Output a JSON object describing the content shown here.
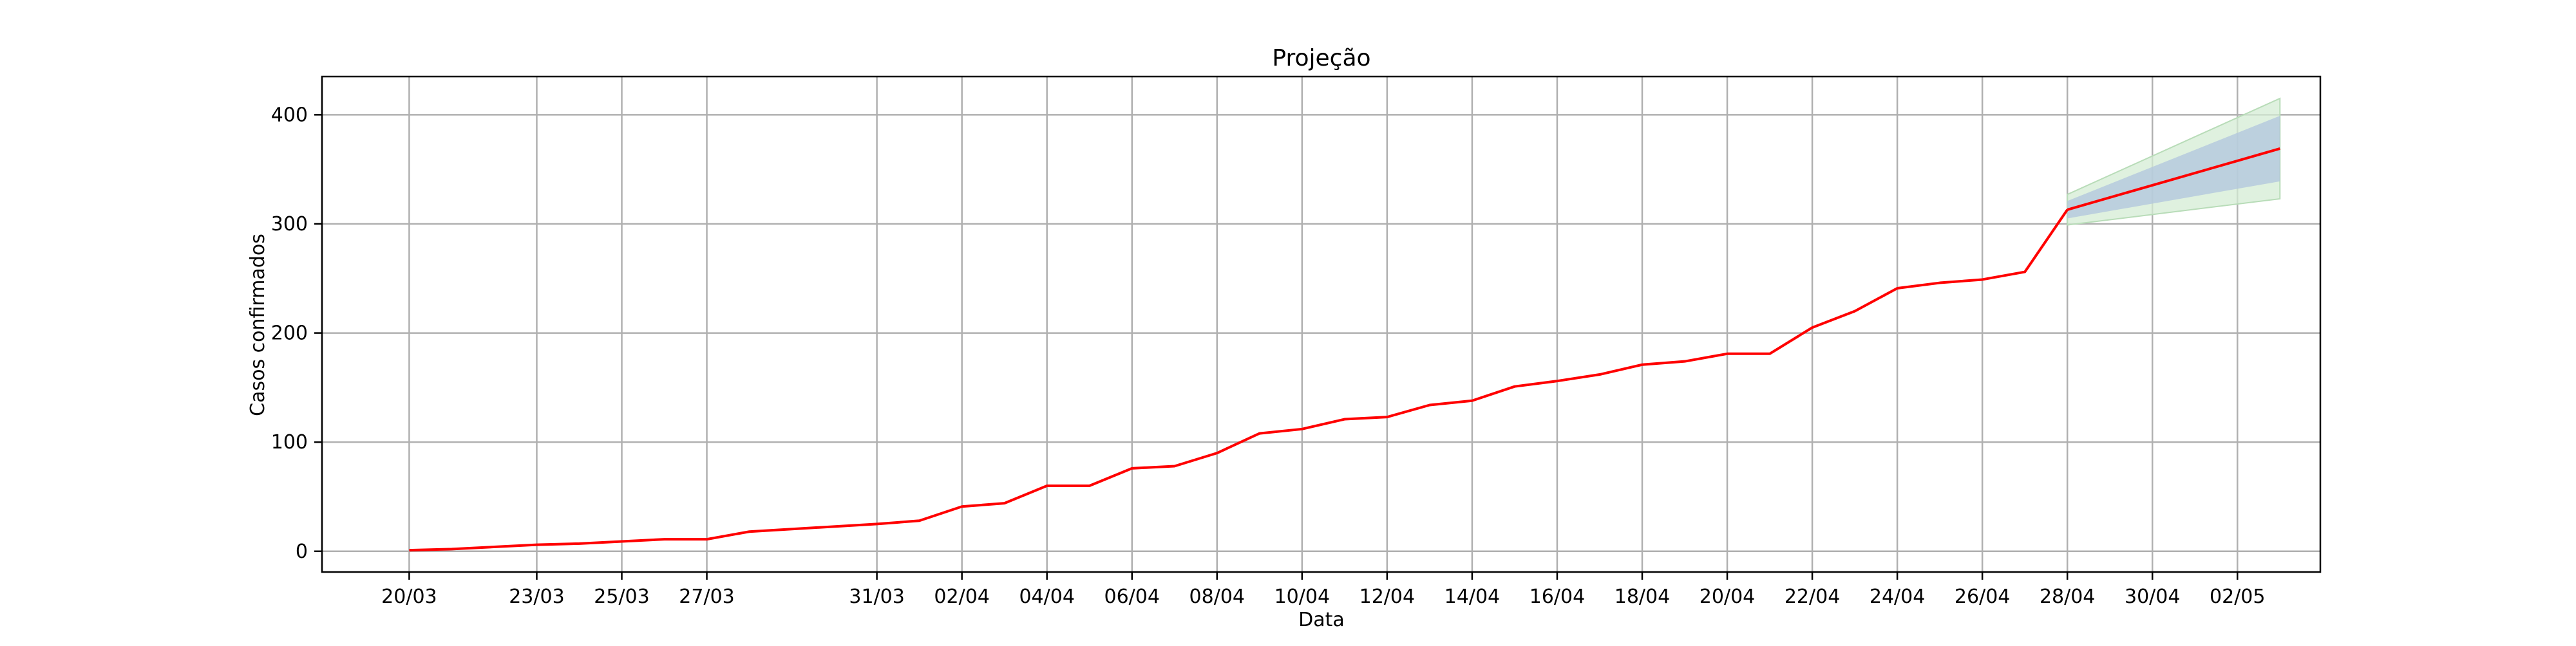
{
  "chart_data": {
    "type": "line",
    "title": "Projeção",
    "xlabel": "Data",
    "ylabel": "Casos confirmados",
    "ylim": [
      -19,
      435
    ],
    "yticks": [
      0,
      100,
      200,
      300,
      400
    ],
    "grid": true,
    "x_tick_labels": [
      "20/03",
      "23/03",
      "25/03",
      "27/03",
      "31/03",
      "02/04",
      "04/04",
      "06/04",
      "08/04",
      "10/04",
      "12/04",
      "14/04",
      "16/04",
      "18/04",
      "20/04",
      "22/04",
      "24/04",
      "26/04",
      "28/04",
      "30/04",
      "02/05"
    ],
    "colors": {
      "observed_line": "#ff0000",
      "inner_band": "#b0c4de",
      "outer_band": "#d4ecd4",
      "outer_band_edge": "#b8dcb8"
    },
    "observed": {
      "x": [
        "20/03",
        "21/03",
        "23/03",
        "24/03",
        "25/03",
        "26/03",
        "27/03",
        "28/03",
        "31/03",
        "01/04",
        "02/04",
        "03/04",
        "04/04",
        "05/04",
        "06/04",
        "07/04",
        "08/04",
        "09/04",
        "10/04",
        "11/04",
        "12/04",
        "13/04",
        "14/04",
        "15/04",
        "16/04",
        "17/04",
        "18/04",
        "19/04",
        "20/04",
        "21/04",
        "22/04",
        "23/04",
        "24/04",
        "25/04",
        "26/04",
        "27/04",
        "28/04"
      ],
      "y": [
        1,
        2,
        6,
        7,
        9,
        11,
        11,
        18,
        25,
        28,
        41,
        44,
        60,
        60,
        76,
        78,
        90,
        108,
        112,
        121,
        123,
        134,
        138,
        151,
        156,
        162,
        171,
        174,
        181,
        181,
        205,
        220,
        241,
        246,
        249,
        256,
        313
      ]
    },
    "projection": {
      "x": [
        "28/04",
        "03/05"
      ],
      "center": [
        313,
        369
      ],
      "inner_lower": [
        305,
        339
      ],
      "inner_upper": [
        321,
        399
      ],
      "outer_lower": [
        299,
        323
      ],
      "outer_upper": [
        327,
        415
      ]
    }
  }
}
